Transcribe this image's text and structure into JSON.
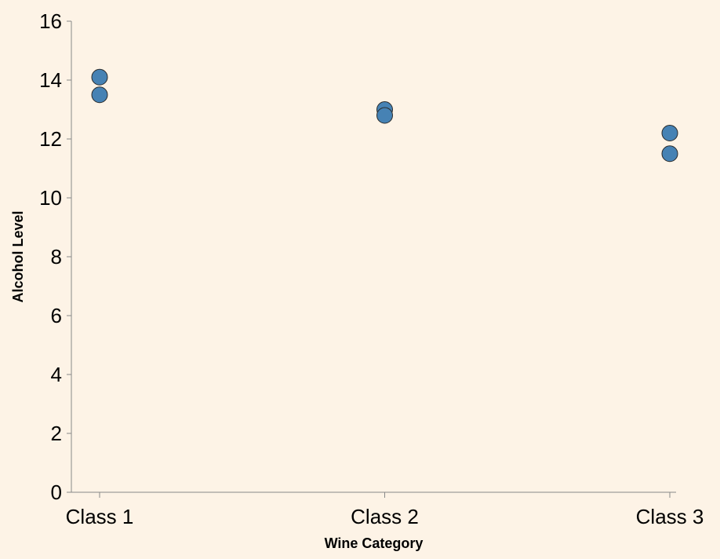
{
  "chart_data": {
    "type": "scatter",
    "title": "",
    "xlabel": "Wine Category",
    "ylabel": "Alcohol Level",
    "categories": [
      "Class 1",
      "Class 2",
      "Class 3"
    ],
    "points": [
      {
        "x": "Class 1",
        "y": 14.1
      },
      {
        "x": "Class 1",
        "y": 13.5
      },
      {
        "x": "Class 2",
        "y": 13.0
      },
      {
        "x": "Class 2",
        "y": 12.8
      },
      {
        "x": "Class 3",
        "y": 12.2
      },
      {
        "x": "Class 3",
        "y": 11.5
      }
    ],
    "ylim": [
      0,
      16
    ],
    "yticks": [
      0,
      2,
      4,
      6,
      8,
      10,
      12,
      14,
      16
    ],
    "grid": false,
    "colors": {
      "background": "#fdf3e6",
      "point": "#4682b4",
      "axis": "#888888"
    }
  }
}
